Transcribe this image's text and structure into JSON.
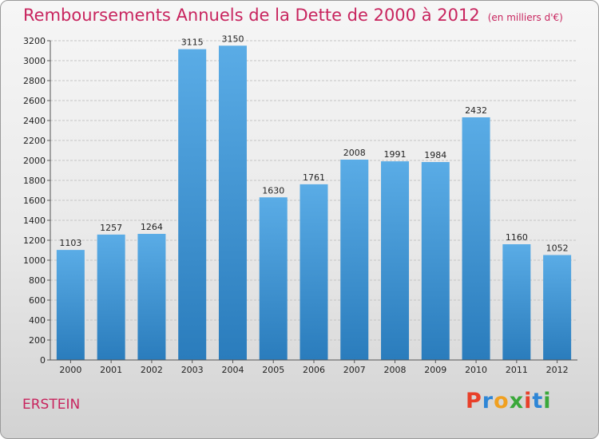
{
  "header": {
    "title": "Remboursements Annuels de la Dette de 2000 à 2012",
    "unit": "(en milliers d'€)"
  },
  "footer": {
    "place": "ERSTEIN",
    "brand": "Proxiti",
    "brand_colors": [
      "#e8402a",
      "#2e86d6",
      "#f0a020",
      "#3aa83a",
      "#e8402a",
      "#2e86d6",
      "#3aa83a"
    ]
  },
  "chart_data": {
    "type": "bar",
    "categories": [
      "2000",
      "2001",
      "2002",
      "2003",
      "2004",
      "2005",
      "2006",
      "2007",
      "2008",
      "2009",
      "2010",
      "2011",
      "2012"
    ],
    "values": [
      1103,
      1257,
      1264,
      3115,
      3150,
      1630,
      1761,
      2008,
      1991,
      1984,
      2432,
      1160,
      1052
    ],
    "ylim": [
      0,
      3200
    ],
    "yticks": [
      0,
      200,
      400,
      600,
      800,
      1000,
      1200,
      1400,
      1600,
      1800,
      2000,
      2200,
      2400,
      2600,
      2800,
      3000,
      3200
    ],
    "grid": true,
    "bar_color_top": "#5aace6",
    "bar_color_bottom": "#2a7cbc"
  }
}
